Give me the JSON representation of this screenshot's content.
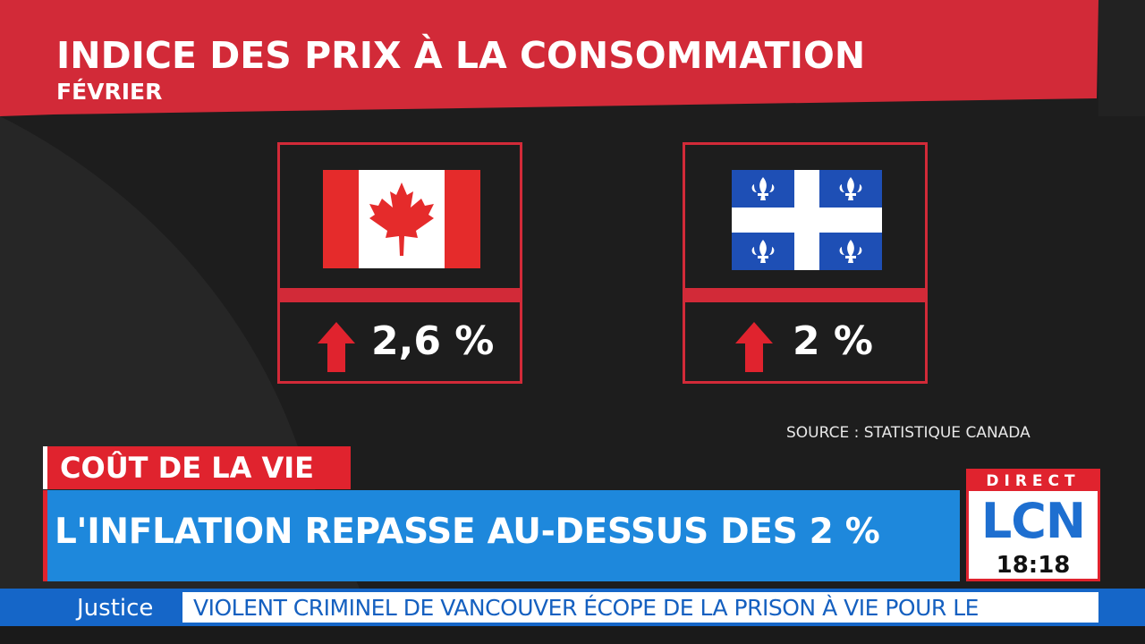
{
  "graphic": {
    "title": "INDICE DES PRIX À LA CONSOMMATION",
    "subtitle": "FÉVRIER",
    "source": "SOURCE : STATISTIQUE CANADA",
    "accent_color": "#d22a38",
    "cards": [
      {
        "flag": "canada-flag-icon",
        "trend": "up-arrow-icon",
        "value": "2,6 %"
      },
      {
        "flag": "quebec-flag-icon",
        "trend": "up-arrow-icon",
        "value": "2 %"
      }
    ]
  },
  "lower_third": {
    "tag": "COÛT DE LA VIE",
    "headline": "L'INFLATION REPASSE AU-DESSUS DES 2 %",
    "tag_color": "#e0232e",
    "headline_color": "#1e88dc"
  },
  "logo": {
    "status": "DIRECT",
    "brand": "LCN",
    "time": "18:18"
  },
  "ticker": {
    "category": "Justice",
    "text": "VIOLENT CRIMINEL DE VANCOUVER ÉCOPE DE LA PRISON À VIE POUR LE",
    "color": "#1566c8"
  }
}
